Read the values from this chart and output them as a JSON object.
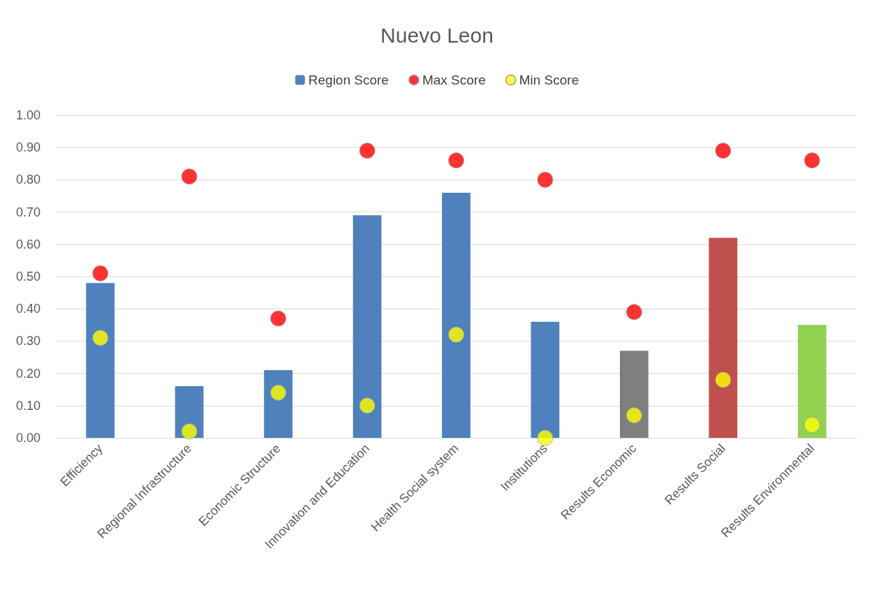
{
  "chart_data": {
    "type": "bar",
    "title": "Nuevo Leon",
    "categories": [
      "Efficiency",
      "Regional Infrastructure",
      "Economic Structure",
      "Innovation and Education",
      "Health Social system",
      "Institutions",
      "Results Economic",
      "Results Social",
      "Results Environmental"
    ],
    "series": [
      {
        "name": "Region Score",
        "color": "#4f81bd",
        "colors": [
          "#4f81bd",
          "#4f81bd",
          "#4f81bd",
          "#4f81bd",
          "#4f81bd",
          "#4f81bd",
          "#7f7f7f",
          "#c0504d",
          "#92d050"
        ],
        "values": [
          0.48,
          0.16,
          0.21,
          0.69,
          0.76,
          0.36,
          0.27,
          0.62,
          0.35
        ]
      },
      {
        "type": "scatter",
        "name": "Max Score",
        "color": "#ff0000",
        "marker": "circle",
        "x": [
          "Efficiency",
          "Regional Infrastructure",
          "Economic Structure",
          "Innovation and Education",
          "Health Social system",
          "Institutions",
          "Results Economic",
          "Results Social",
          "Results Environmental"
        ],
        "values": [
          0.51,
          0.81,
          0.37,
          0.89,
          0.86,
          0.8,
          0.39,
          0.89,
          0.86
        ]
      },
      {
        "type": "scatter",
        "name": "Min Score",
        "color": "#ffff00",
        "marker": "circle",
        "x": [
          "Efficiency",
          "Regional Infrastructure",
          "Economic Structure",
          "Innovation and Education",
          "Health Social system",
          "Institutions",
          "Results Economic",
          "Results Social",
          "Results Environmental"
        ],
        "values": [
          0.31,
          0.02,
          0.14,
          0.1,
          0.32,
          0.0,
          0.07,
          0.18,
          0.04
        ]
      }
    ],
    "ylim": [
      0,
      1
    ],
    "yticks": [
      {
        "value": 0,
        "label": "0.00"
      },
      {
        "value": 0.1,
        "label": "0.10"
      },
      {
        "value": 0.2,
        "label": "0.20"
      },
      {
        "value": 0.3,
        "label": "0.30"
      },
      {
        "value": 0.4,
        "label": "0.40"
      },
      {
        "value": 0.5,
        "label": "0.50"
      },
      {
        "value": 0.6,
        "label": "0.60"
      },
      {
        "value": 0.7,
        "label": "0.70"
      },
      {
        "value": 0.8,
        "label": "0.80"
      },
      {
        "value": 0.9,
        "label": "0.90"
      },
      {
        "value": 1.0,
        "label": "1.00"
      }
    ],
    "grid": "y",
    "legend": "top"
  }
}
